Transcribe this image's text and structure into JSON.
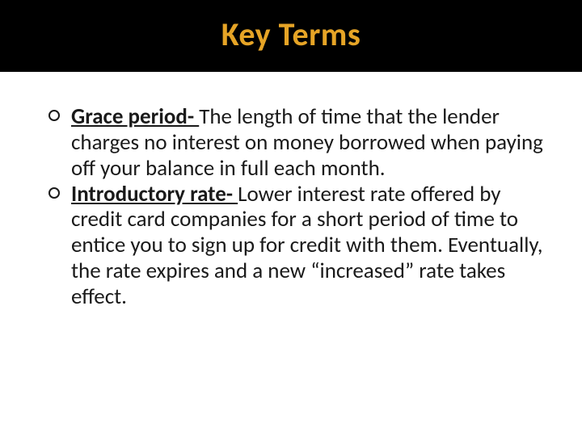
{
  "slide": {
    "title": "Key Terms",
    "title_color": "#e6a426",
    "title_bg": "#000000",
    "title_fontsize": 40,
    "body_fontsize": 27,
    "body_color": "#1a1a1a",
    "background_color": "#ffffff",
    "bullet_marker_style": "hollow-circle",
    "bullets": [
      {
        "term": "Grace period- ",
        "definition": "The length of time that the lender charges no interest on money borrowed when paying off your balance in full each month."
      },
      {
        "term": "Introductory rate- ",
        "definition": "Lower interest rate offered by credit card companies for a short period of time to entice you to sign up for credit with them. Eventually, the rate expires and a new “increased” rate takes effect."
      }
    ]
  }
}
